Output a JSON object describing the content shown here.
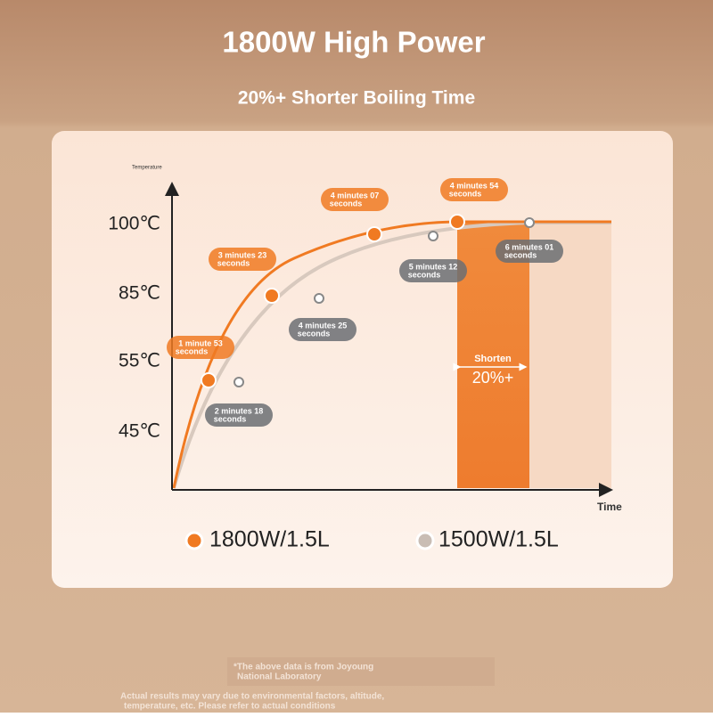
{
  "header": {
    "title": "1800W High Power",
    "subtitle": "20%+ Shorter Boiling Time"
  },
  "chart": {
    "y_axis_label": "Temperature",
    "x_axis_label": "Time",
    "y_labels": [
      "100℃",
      "85℃",
      "55℃",
      "45℃"
    ],
    "series": [
      {
        "name": "1800W/1.5L",
        "callouts": [
          [
            "1 minute 53",
            "seconds"
          ],
          [
            "3 minutes 23",
            "seconds"
          ],
          [
            "4 minutes 07",
            "seconds"
          ],
          [
            "4 minutes 54",
            "seconds"
          ]
        ]
      },
      {
        "name": "1500W/1.5L",
        "callouts": [
          [
            "2 minutes 18",
            "seconds"
          ],
          [
            "4 minutes 25",
            "seconds"
          ],
          [
            "5 minutes 12",
            "seconds"
          ],
          [
            "6 minutes 01",
            "seconds"
          ]
        ]
      }
    ],
    "shorten": {
      "label": "Shorten",
      "value": "20%+"
    }
  },
  "footnotes": [
    "*The above data is from Joyoung",
    "National Laboratory",
    "Actual results may vary due to environmental factors, altitude,",
    "temperature, etc. Please refer to actual conditions"
  ]
}
